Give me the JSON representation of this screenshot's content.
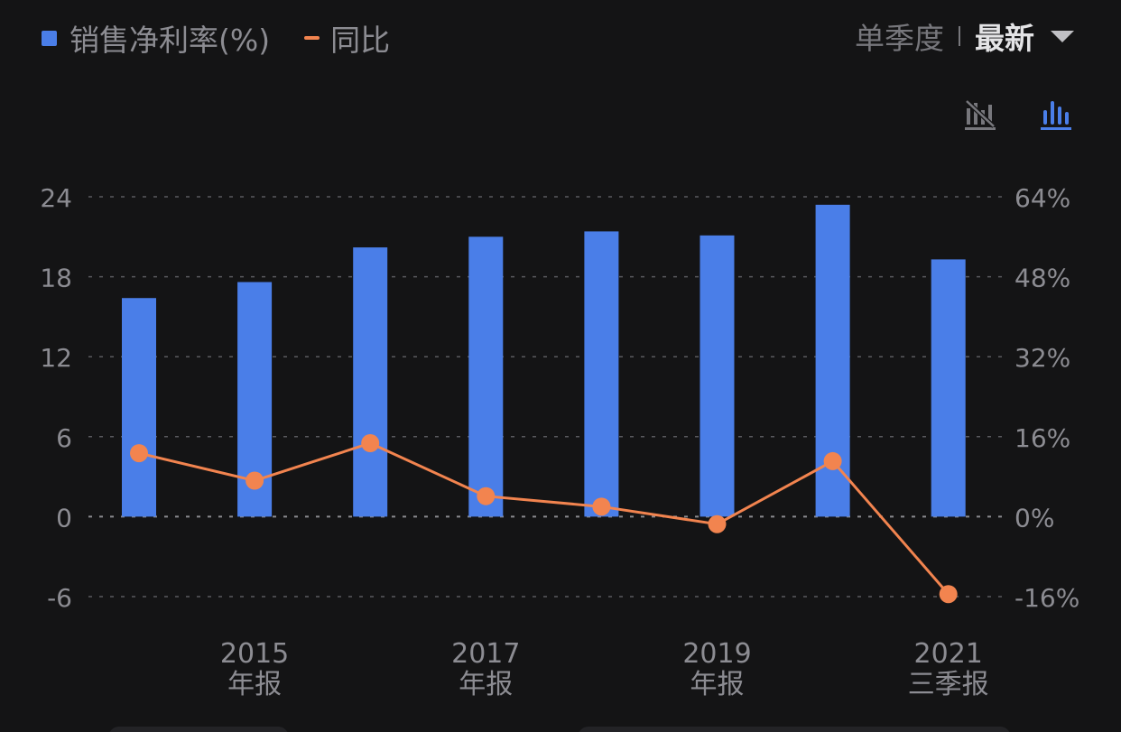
{
  "legend": {
    "bar_label": "销售净利率(%)",
    "line_label": "同比"
  },
  "controls": {
    "period": "单季度",
    "latest": "最新"
  },
  "colors": {
    "background": "#141415",
    "bar": "#4a7ee8",
    "line": "#f2844f",
    "grid": "#5a5a5e",
    "text": "#8c8c92"
  },
  "chart_data": {
    "type": "bar+line",
    "series": [
      {
        "name": "销售净利率(%)",
        "type": "bar",
        "axis": "left",
        "values": [
          16.4,
          17.6,
          20.2,
          21.0,
          21.4,
          21.1,
          23.4,
          19.3
        ]
      },
      {
        "name": "同比",
        "type": "line",
        "axis": "right",
        "values": [
          12.7,
          7.2,
          14.7,
          4.1,
          2.0,
          -1.5,
          11.1,
          -15.5
        ]
      }
    ],
    "x_labels": [
      {
        "top": "",
        "bottom": ""
      },
      {
        "top": "2015",
        "bottom": "年报"
      },
      {
        "top": "",
        "bottom": ""
      },
      {
        "top": "2017",
        "bottom": "年报"
      },
      {
        "top": "",
        "bottom": ""
      },
      {
        "top": "2019",
        "bottom": "年报"
      },
      {
        "top": "",
        "bottom": ""
      },
      {
        "top": "2021",
        "bottom": "三季报"
      }
    ],
    "left_axis": {
      "ticks": [
        "24",
        "18",
        "12",
        "6",
        "0",
        "-6"
      ],
      "min": -6,
      "max": 24
    },
    "right_axis": {
      "ticks": [
        "64%",
        "48%",
        "32%",
        "16%",
        "0%",
        "-16%"
      ],
      "min": -16,
      "max": 64
    },
    "grid": true
  }
}
